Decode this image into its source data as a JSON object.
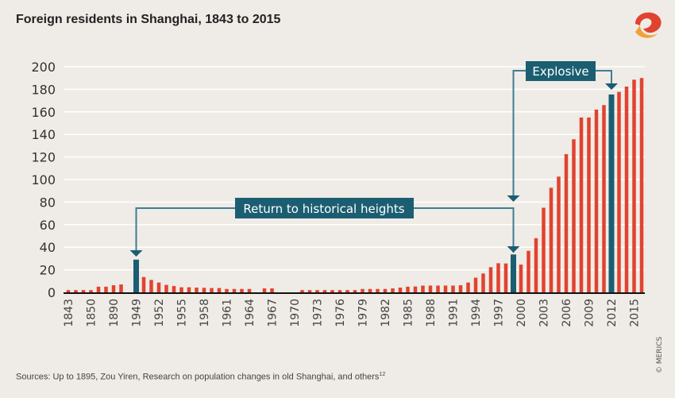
{
  "title": "Foreign residents in Shanghai, 1843 to 2015",
  "source": "Sources: Up to 1895, Zou Yiren, Research on population changes in old Shanghai, and others",
  "source_superscript": "12",
  "copyright": "© MERICS",
  "colors": {
    "bar": "#e0432f",
    "highlight": "#1b5e72",
    "background": "#efebe6",
    "grid": "#ffffff"
  },
  "annotations": [
    {
      "text": "Return to historical heights",
      "targets": [
        "1949",
        "1999"
      ]
    },
    {
      "text": "Explosive",
      "targets": [
        "1999",
        "2012"
      ]
    }
  ],
  "chart_data": {
    "type": "bar",
    "title": "Foreign residents in Shanghai, 1843 to 2015",
    "ylim": [
      0,
      200
    ],
    "yticks": [
      0,
      20,
      40,
      60,
      80,
      100,
      120,
      140,
      160,
      180,
      200
    ],
    "grid": true,
    "tick_labels": [
      "1843",
      "1850",
      "1890",
      "1949",
      "1952",
      "1955",
      "1958",
      "1961",
      "1964",
      "1967",
      "1970",
      "1973",
      "1976",
      "1979",
      "1982",
      "1985",
      "1988",
      "1991",
      "1994",
      "1997",
      "2000",
      "2003",
      "2006",
      "2009",
      "2012",
      "2015"
    ],
    "categories": [
      "1843",
      "",
      "",
      "1850",
      "",
      "",
      "1890",
      "",
      "",
      "1949",
      "1950",
      "1951",
      "1952",
      "1953",
      "1954",
      "1955",
      "1956",
      "1957",
      "1958",
      "1959",
      "1960",
      "1961",
      "1962",
      "1963",
      "1964",
      "1965",
      "1966",
      "1967",
      "1968",
      "1969",
      "1970",
      "1971",
      "1972",
      "1973",
      "1974",
      "1975",
      "1976",
      "1977",
      "1978",
      "1979",
      "1980",
      "1981",
      "1982",
      "1983",
      "1984",
      "1985",
      "1986",
      "1987",
      "1988",
      "1989",
      "1990",
      "1991",
      "1992",
      "1993",
      "1994",
      "1995",
      "1996",
      "1997",
      "1998",
      "1999",
      "2000",
      "2001",
      "2002",
      "2003",
      "2004",
      "2005",
      "2006",
      "2007",
      "2008",
      "2009",
      "2010",
      "2011",
      "2012",
      "2013",
      "2014",
      "2015",
      "2016"
    ],
    "values": [
      2,
      2,
      2,
      2,
      5,
      5,
      6.3,
      7,
      0,
      29,
      13.6,
      11,
      8.7,
      6.6,
      5.6,
      4.5,
      4.5,
      4.2,
      4,
      3.8,
      3.8,
      3,
      3,
      3,
      3,
      0,
      3.5,
      3.5,
      0,
      0,
      0,
      2,
      2,
      2,
      2,
      2,
      2,
      2,
      2,
      3,
      3,
      3,
      3,
      3.5,
      4.2,
      5,
      5.2,
      6,
      6,
      6,
      6,
      6,
      6.3,
      8.7,
      13,
      16.7,
      22.3,
      25.8,
      25.6,
      33.6,
      24.6,
      36.8,
      48,
      75,
      92.7,
      102.6,
      122.5,
      135.7,
      155,
      155,
      162,
      166,
      175.4,
      177.7,
      182.4,
      188.5,
      190
    ],
    "highlighted": [
      "1949",
      "1999",
      "2012"
    ]
  }
}
